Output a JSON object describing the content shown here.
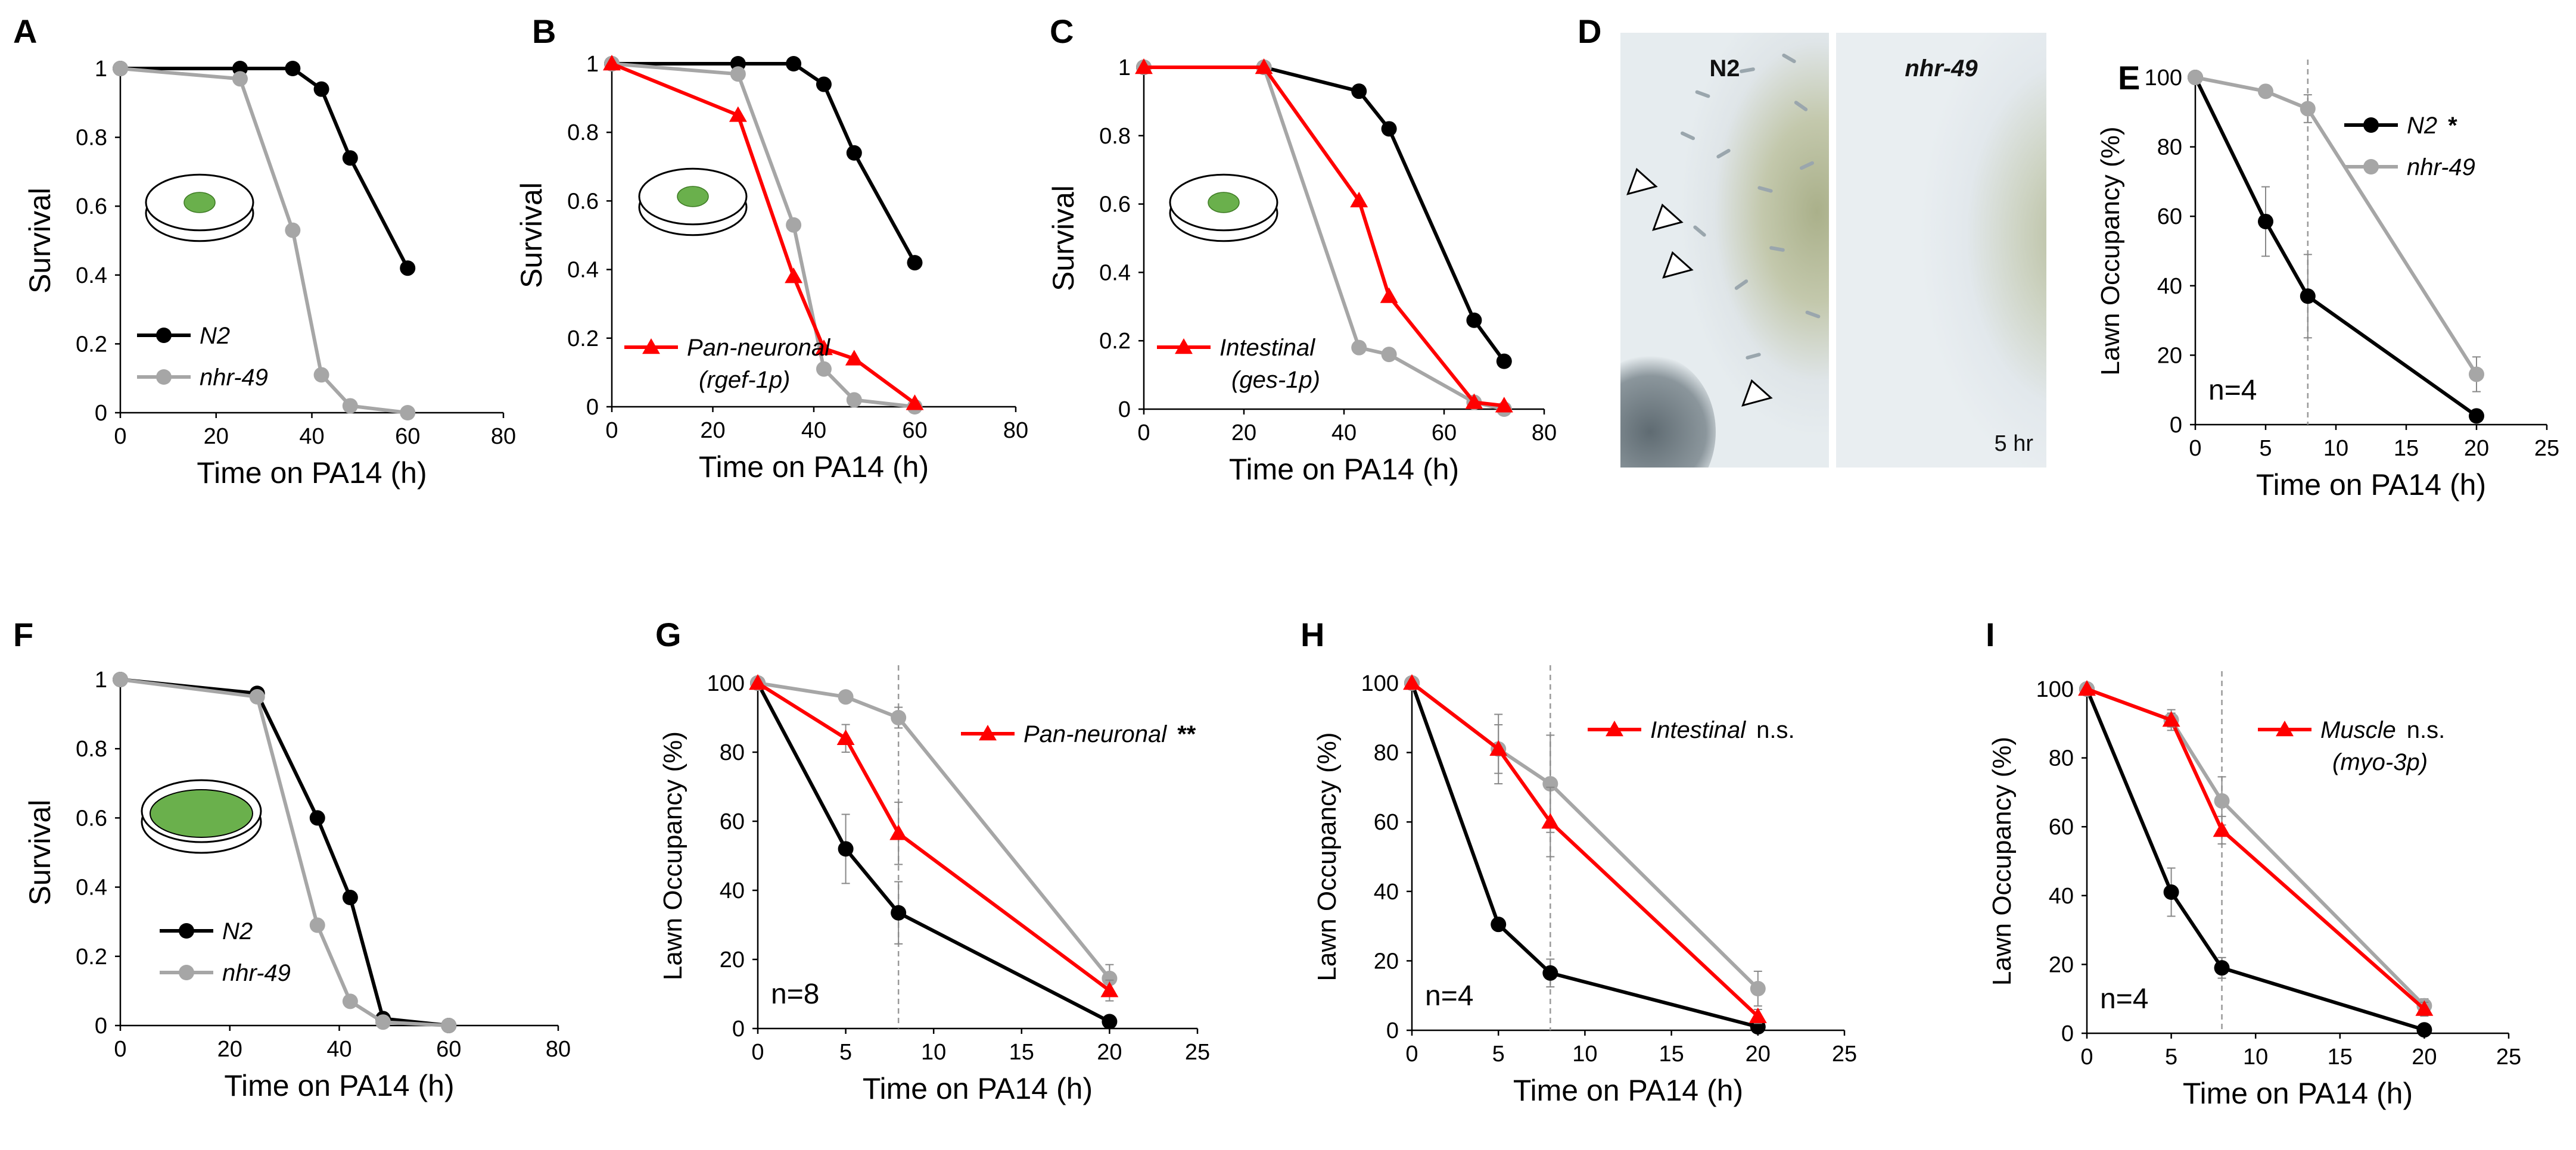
{
  "colors": {
    "black": "#000000",
    "gray": "#a6a6a6",
    "red": "#ff0000",
    "dish_green": "#6ab04c",
    "axis": "#000000",
    "dashed": "#999999"
  },
  "panel_letters": [
    "A",
    "B",
    "C",
    "D",
    "E",
    "F",
    "G",
    "H",
    "I"
  ],
  "panel_d": {
    "left_label": "N2",
    "right_label": "nhr-49",
    "time_label": "5 hr",
    "icon": "arrowhead-triangle-icon"
  },
  "chart_data": [
    {
      "id": "A",
      "type": "line",
      "ylabel": "Survival",
      "xlabel": "Time on PA14 (h)",
      "xlim": [
        0,
        80
      ],
      "ylim": [
        0,
        1
      ],
      "xticks": [
        "0",
        "20",
        "40",
        "60",
        "80"
      ],
      "yticks": [
        "0",
        "0.2",
        "0.4",
        "0.6",
        "0.8",
        "1"
      ],
      "dish_icon": "small-dot",
      "series": [
        {
          "name": "N2",
          "color": "#000000",
          "marker": "circle",
          "x": [
            0,
            25,
            36,
            42,
            48,
            60
          ],
          "y": [
            1,
            1,
            1,
            0.94,
            0.74,
            0.42
          ]
        },
        {
          "name": "nhr-49",
          "color": "#a6a6a6",
          "marker": "circle",
          "x": [
            0,
            25,
            36,
            42,
            48,
            60
          ],
          "y": [
            1,
            0.97,
            0.53,
            0.11,
            0.02,
            0
          ]
        }
      ],
      "legend": [
        {
          "label": "N2",
          "color": "#000000",
          "marker": "circle"
        },
        {
          "label": "nhr-49",
          "color": "#a6a6a6",
          "marker": "circle"
        }
      ]
    },
    {
      "id": "B",
      "type": "line",
      "ylabel": "Survival",
      "xlabel": "Time on PA14 (h)",
      "xlim": [
        0,
        80
      ],
      "ylim": [
        0,
        1
      ],
      "xticks": [
        "0",
        "20",
        "40",
        "60",
        "80"
      ],
      "yticks": [
        "0",
        "0.2",
        "0.4",
        "0.6",
        "0.8",
        "1"
      ],
      "dish_icon": "small-dot",
      "series": [
        {
          "name": "N2",
          "color": "#000000",
          "marker": "circle",
          "x": [
            0,
            25,
            36,
            42,
            48,
            60
          ],
          "y": [
            1,
            1,
            1,
            0.94,
            0.74,
            0.42
          ]
        },
        {
          "name": "nhr-49",
          "color": "#a6a6a6",
          "marker": "circle",
          "x": [
            0,
            25,
            36,
            42,
            48,
            60
          ],
          "y": [
            1,
            0.97,
            0.53,
            0.11,
            0.02,
            0
          ]
        },
        {
          "name": "Pan-neuronal",
          "color": "#ff0000",
          "marker": "triangle",
          "x": [
            0,
            25,
            36,
            42,
            48,
            60
          ],
          "y": [
            1,
            0.85,
            0.38,
            0.17,
            0.14,
            0.01
          ]
        }
      ],
      "legend": [
        {
          "label": "Pan-neuronal",
          "sublabel": "(rgef-1p)",
          "color": "#ff0000",
          "marker": "triangle"
        }
      ]
    },
    {
      "id": "C",
      "type": "line",
      "ylabel": "Survival",
      "xlabel": "Time on PA14 (h)",
      "xlim": [
        0,
        80
      ],
      "ylim": [
        0,
        1
      ],
      "xticks": [
        "0",
        "20",
        "40",
        "60",
        "80"
      ],
      "yticks": [
        "0",
        "0.2",
        "0.4",
        "0.6",
        "0.8",
        "1"
      ],
      "dish_icon": "small-dot",
      "series": [
        {
          "name": "N2",
          "color": "#000000",
          "marker": "circle",
          "x": [
            0,
            24,
            43,
            49,
            66,
            72
          ],
          "y": [
            1,
            1,
            0.93,
            0.82,
            0.26,
            0.14
          ]
        },
        {
          "name": "nhr-49",
          "color": "#a6a6a6",
          "marker": "circle",
          "x": [
            0,
            24,
            43,
            49,
            66,
            72
          ],
          "y": [
            1,
            1,
            0.18,
            0.16,
            0.02,
            0
          ]
        },
        {
          "name": "Intestinal",
          "color": "#ff0000",
          "marker": "triangle",
          "x": [
            0,
            24,
            43,
            49,
            66,
            72
          ],
          "y": [
            1,
            1,
            0.61,
            0.33,
            0.02,
            0.01
          ]
        }
      ],
      "legend": [
        {
          "label": "Intestinal",
          "sublabel": "(ges-1p)",
          "color": "#ff0000",
          "marker": "triangle"
        }
      ]
    },
    {
      "id": "E",
      "type": "line",
      "ylabel": "Lawn Occupancy (%)",
      "xlabel": "Time on PA14 (h)",
      "xlim": [
        0,
        25
      ],
      "ylim": [
        0,
        100
      ],
      "xticks": [
        "0",
        "5",
        "10",
        "15",
        "20",
        "25"
      ],
      "yticks": [
        "0",
        "20",
        "40",
        "60",
        "80",
        "100"
      ],
      "vline_x": 8,
      "n_label": "n=4",
      "series": [
        {
          "name": "N2",
          "color": "#000000",
          "marker": "circle",
          "x": [
            0,
            5,
            8,
            20
          ],
          "y": [
            100,
            58.5,
            37,
            2.5
          ],
          "err": [
            0,
            10,
            12,
            0
          ]
        },
        {
          "name": "nhr-49",
          "color": "#a6a6a6",
          "marker": "circle",
          "x": [
            0,
            5,
            8,
            20
          ],
          "y": [
            100,
            96,
            91,
            14.5
          ],
          "err": [
            0,
            0,
            4,
            5
          ]
        }
      ],
      "legend": [
        {
          "label": "N2",
          "color": "#000000",
          "marker": "circle",
          "significance": "*"
        },
        {
          "label": "nhr-49",
          "color": "#a6a6a6",
          "marker": "circle"
        }
      ]
    },
    {
      "id": "F",
      "type": "line",
      "ylabel": "Survival",
      "xlabel": "Time on PA14 (h)",
      "xlim": [
        0,
        80
      ],
      "ylim": [
        0,
        1
      ],
      "xticks": [
        "0",
        "20",
        "40",
        "60",
        "80"
      ],
      "yticks": [
        "0",
        "0.2",
        "0.4",
        "0.6",
        "0.8",
        "1"
      ],
      "dish_icon": "full-lawn",
      "series": [
        {
          "name": "N2",
          "color": "#000000",
          "marker": "circle",
          "x": [
            0,
            25,
            36,
            42,
            48,
            60
          ],
          "y": [
            1,
            0.96,
            0.6,
            0.37,
            0.02,
            0
          ]
        },
        {
          "name": "nhr-49",
          "color": "#a6a6a6",
          "marker": "circle",
          "x": [
            0,
            25,
            36,
            42,
            48,
            60
          ],
          "y": [
            1,
            0.95,
            0.29,
            0.07,
            0.01,
            0
          ]
        }
      ],
      "legend": [
        {
          "label": "N2",
          "color": "#000000",
          "marker": "circle"
        },
        {
          "label": "nhr-49",
          "color": "#a6a6a6",
          "marker": "circle"
        }
      ]
    },
    {
      "id": "G",
      "type": "line",
      "ylabel": "Lawn Occupancy (%)",
      "xlabel": "Time on PA14 (h)",
      "xlim": [
        0,
        25
      ],
      "ylim": [
        0,
        100
      ],
      "xticks": [
        "0",
        "5",
        "10",
        "15",
        "20",
        "25"
      ],
      "yticks": [
        "0",
        "20",
        "40",
        "60",
        "80",
        "100"
      ],
      "vline_x": 8,
      "n_label": "n=8",
      "series": [
        {
          "name": "N2",
          "color": "#000000",
          "marker": "circle",
          "x": [
            0,
            5,
            8,
            20
          ],
          "y": [
            100,
            52,
            33.5,
            2
          ],
          "err": [
            0,
            10,
            9,
            0
          ]
        },
        {
          "name": "nhr-49",
          "color": "#a6a6a6",
          "marker": "circle",
          "x": [
            0,
            5,
            8,
            20
          ],
          "y": [
            100,
            96,
            90,
            14.5
          ],
          "err": [
            0,
            0,
            3,
            4
          ]
        },
        {
          "name": "Pan-neuronal",
          "color": "#ff0000",
          "marker": "triangle",
          "x": [
            0,
            5,
            8,
            20
          ],
          "y": [
            100,
            84,
            56.5,
            11
          ],
          "err": [
            0,
            4,
            9,
            3
          ]
        }
      ],
      "legend": [
        {
          "label": "Pan-neuronal",
          "color": "#ff0000",
          "marker": "triangle",
          "significance": "**"
        }
      ]
    },
    {
      "id": "H",
      "type": "line",
      "ylabel": "Lawn Occupancy (%)",
      "xlabel": "Time on PA14 (h)",
      "xlim": [
        0,
        25
      ],
      "ylim": [
        0,
        100
      ],
      "xticks": [
        "0",
        "5",
        "10",
        "15",
        "20",
        "25"
      ],
      "yticks": [
        "0",
        "20",
        "40",
        "60",
        "80",
        "100"
      ],
      "vline_x": 8,
      "n_label": "n=4",
      "series": [
        {
          "name": "N2",
          "color": "#000000",
          "marker": "circle",
          "x": [
            0,
            5,
            8,
            20
          ],
          "y": [
            100,
            30.5,
            16.5,
            1
          ],
          "err": [
            0,
            0,
            4,
            0
          ]
        },
        {
          "name": "nhr-49",
          "color": "#a6a6a6",
          "marker": "circle",
          "x": [
            0,
            5,
            8,
            20
          ],
          "y": [
            100,
            81,
            71,
            12
          ],
          "err": [
            0,
            10,
            14,
            5
          ]
        },
        {
          "name": "Intestinal",
          "color": "#ff0000",
          "marker": "triangle",
          "x": [
            0,
            5,
            8,
            20
          ],
          "y": [
            100,
            81,
            60,
            4
          ],
          "err": [
            0,
            7,
            10,
            2
          ]
        }
      ],
      "legend": [
        {
          "label": "Intestinal",
          "color": "#ff0000",
          "marker": "triangle",
          "significance": "n.s."
        }
      ]
    },
    {
      "id": "I",
      "type": "line",
      "ylabel": "Lawn Occupancy (%)",
      "xlabel": "Time on PA14 (h)",
      "xlim": [
        0,
        25
      ],
      "ylim": [
        0,
        100
      ],
      "xticks": [
        "0",
        "5",
        "10",
        "15",
        "20",
        "25"
      ],
      "yticks": [
        "0",
        "20",
        "40",
        "60",
        "80",
        "100"
      ],
      "vline_x": 8,
      "n_label": "n=4",
      "series": [
        {
          "name": "N2",
          "color": "#000000",
          "marker": "circle",
          "x": [
            0,
            5,
            8,
            20
          ],
          "y": [
            100,
            41,
            19,
            1
          ],
          "err": [
            0,
            7,
            3,
            0
          ]
        },
        {
          "name": "nhr-49",
          "color": "#a6a6a6",
          "marker": "circle",
          "x": [
            0,
            5,
            8,
            20
          ],
          "y": [
            100,
            91,
            67.5,
            8
          ],
          "err": [
            0,
            3,
            7,
            2
          ]
        },
        {
          "name": "Muscle",
          "color": "#ff0000",
          "marker": "triangle",
          "x": [
            0,
            5,
            8,
            20
          ],
          "y": [
            100,
            91,
            59,
            7
          ],
          "err": [
            0,
            2,
            4,
            2
          ]
        }
      ],
      "legend": [
        {
          "label": "Muscle",
          "sublabel": "(myo-3p)",
          "color": "#ff0000",
          "marker": "triangle",
          "significance": "n.s."
        }
      ]
    }
  ]
}
